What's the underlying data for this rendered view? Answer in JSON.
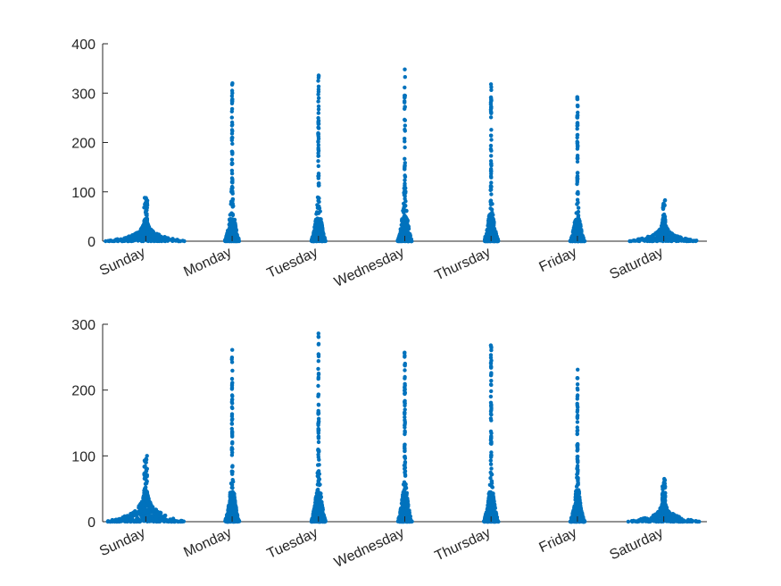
{
  "chart_data": [
    {
      "type": "scatter",
      "style": "swarm",
      "categories": [
        "Sunday",
        "Monday",
        "Tuesday",
        "Wednesday",
        "Thursday",
        "Friday",
        "Saturday"
      ],
      "ylim": [
        0,
        400
      ],
      "yticks": [
        0,
        100,
        200,
        300,
        400
      ],
      "xtick_rotation": -25,
      "grid": false,
      "legend": "none",
      "series_color": "#0072BD",
      "category_max": [
        88,
        320,
        336,
        348,
        318,
        292,
        83
      ],
      "category_spread": [
        0.95,
        0.17,
        0.17,
        0.17,
        0.17,
        0.17,
        0.85
      ]
    },
    {
      "type": "scatter",
      "style": "swarm",
      "categories": [
        "Sunday",
        "Monday",
        "Tuesday",
        "Wednesday",
        "Thursday",
        "Friday",
        "Saturday"
      ],
      "ylim": [
        0,
        300
      ],
      "yticks": [
        0,
        100,
        200,
        300
      ],
      "xtick_rotation": -25,
      "grid": false,
      "legend": "none",
      "series_color": "#0072BD",
      "category_max": [
        100,
        261,
        286,
        257,
        268,
        231,
        65
      ],
      "category_spread": [
        0.95,
        0.17,
        0.17,
        0.17,
        0.17,
        0.17,
        0.85
      ]
    }
  ]
}
